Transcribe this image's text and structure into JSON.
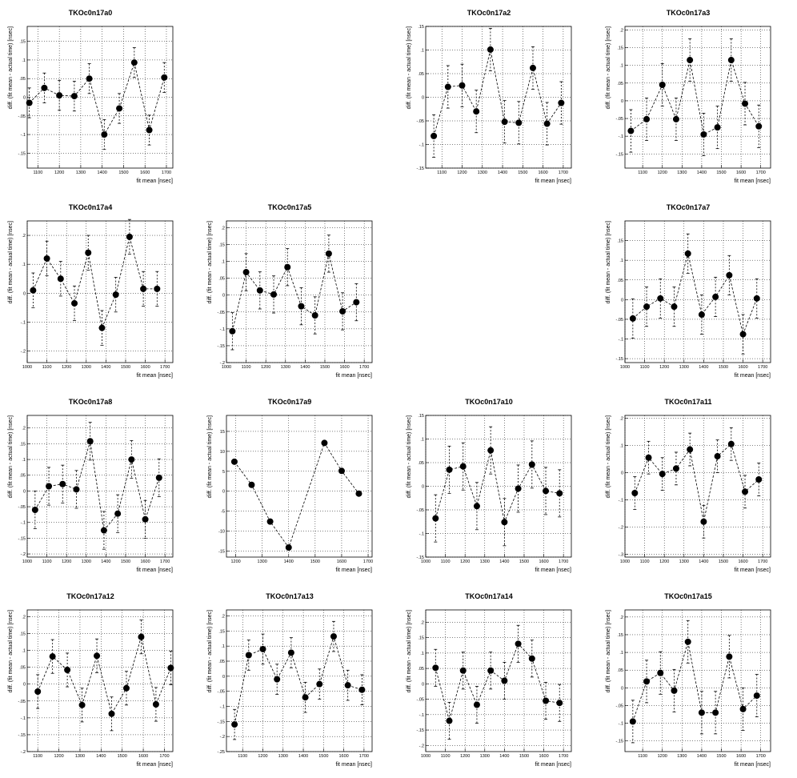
{
  "chart_data": [
    {
      "type": "scatter",
      "title": "TKOc0n17a0",
      "xlabel": "fit mean [nsec]",
      "ylabel": "diff. (fit mean - actual time) [nsec]",
      "xlim": [
        1050,
        1730
      ],
      "ylim": [
        -0.19,
        0.19
      ],
      "xticks": [
        1100,
        1200,
        1300,
        1400,
        1500,
        1600,
        1700
      ],
      "yticks": [
        -0.15,
        -0.1,
        -0.05,
        0,
        0.05,
        0.1,
        0.15
      ],
      "grid": true,
      "x": [
        1060,
        1130,
        1200,
        1270,
        1340,
        1410,
        1480,
        1550,
        1620,
        1690
      ],
      "y": [
        -0.015,
        0.025,
        0.005,
        0.003,
        0.05,
        -0.1,
        -0.03,
        0.093,
        -0.088,
        0.053
      ],
      "err": [
        0.04,
        0.04,
        0.04,
        0.04,
        0.04,
        0.04,
        0.04,
        0.04,
        0.04,
        0.04
      ]
    },
    {
      "type": "empty"
    },
    {
      "type": "scatter",
      "title": "TKOc0n17a2",
      "xlabel": "fit mean [nsec]",
      "ylabel": "diff. (fit mean - actual time) [nsec]",
      "xlim": [
        1020,
        1740
      ],
      "ylim": [
        -0.15,
        0.15
      ],
      "xticks": [
        1100,
        1200,
        1300,
        1400,
        1500,
        1600,
        1700
      ],
      "yticks": [
        -0.15,
        -0.1,
        -0.05,
        0,
        0.05,
        0.1,
        0.15
      ],
      "grid": true,
      "x": [
        1060,
        1130,
        1200,
        1270,
        1340,
        1410,
        1480,
        1550,
        1620,
        1690
      ],
      "y": [
        -0.082,
        0.022,
        0.025,
        -0.03,
        0.101,
        -0.052,
        -0.054,
        0.062,
        -0.056,
        -0.012
      ],
      "err": [
        0.045,
        0.045,
        0.045,
        0.045,
        0.045,
        0.045,
        0.045,
        0.045,
        0.045,
        0.045
      ]
    },
    {
      "type": "scatter",
      "title": "TKOc0n17a3",
      "xlabel": "fit mean [nsec]",
      "ylabel": "diff. (fit mean - actual time) [nsec]",
      "xlim": [
        1010,
        1750
      ],
      "ylim": [
        -0.19,
        0.21
      ],
      "xticks": [
        1100,
        1200,
        1300,
        1400,
        1500,
        1600,
        1700
      ],
      "yticks": [
        -0.15,
        -0.1,
        -0.05,
        0,
        0.05,
        0.1,
        0.15,
        0.2
      ],
      "grid": true,
      "x": [
        1040,
        1120,
        1200,
        1270,
        1340,
        1410,
        1480,
        1550,
        1620,
        1690
      ],
      "y": [
        -0.085,
        -0.052,
        0.045,
        -0.052,
        0.115,
        -0.095,
        -0.075,
        0.115,
        -0.008,
        -0.072
      ],
      "err": [
        0.06,
        0.06,
        0.06,
        0.06,
        0.06,
        0.06,
        0.06,
        0.06,
        0.06,
        0.06
      ]
    },
    {
      "type": "scatter",
      "title": "TKOc0n17a4",
      "xlabel": "fit mean [nsec]",
      "ylabel": "diff. (fit mean - actual time) [nsec]",
      "xlim": [
        1000,
        1740
      ],
      "ylim": [
        -0.24,
        0.25
      ],
      "xticks": [
        1000,
        1100,
        1200,
        1300,
        1400,
        1500,
        1600,
        1700
      ],
      "yticks": [
        -0.2,
        -0.1,
        0,
        0.1,
        0.2
      ],
      "grid": true,
      "x": [
        1030,
        1100,
        1170,
        1240,
        1310,
        1380,
        1450,
        1520,
        1590,
        1660
      ],
      "y": [
        0.01,
        0.12,
        0.05,
        -0.035,
        0.14,
        -0.12,
        -0.005,
        0.195,
        0.015,
        0.015
      ],
      "err": [
        0.06,
        0.06,
        0.06,
        0.06,
        0.06,
        0.06,
        0.06,
        0.06,
        0.06,
        0.06
      ]
    },
    {
      "type": "scatter",
      "title": "TKOc0n17a5",
      "xlabel": "fit mean [nsec]",
      "ylabel": "diff. (fit mean - actual time) [nsec]",
      "xlim": [
        1000,
        1740
      ],
      "ylim": [
        -0.2,
        0.22
      ],
      "xticks": [
        1000,
        1100,
        1200,
        1300,
        1400,
        1500,
        1600,
        1700
      ],
      "yticks": [
        -0.2,
        -0.15,
        -0.1,
        -0.05,
        0,
        0.05,
        0.1,
        0.15,
        0.2
      ],
      "grid": true,
      "x": [
        1030,
        1100,
        1170,
        1240,
        1310,
        1380,
        1450,
        1520,
        1590,
        1660
      ],
      "y": [
        -0.107,
        0.068,
        0.014,
        0.002,
        0.083,
        -0.033,
        -0.06,
        0.123,
        -0.048,
        -0.021
      ],
      "err": [
        0.055,
        0.055,
        0.055,
        0.055,
        0.055,
        0.055,
        0.055,
        0.055,
        0.055,
        0.055
      ]
    },
    {
      "type": "empty"
    },
    {
      "type": "scatter",
      "title": "TKOc0n17a7",
      "xlabel": "fit mean [nsec]",
      "ylabel": "diff. (fit mean - actual time) [nsec]",
      "xlim": [
        1000,
        1740
      ],
      "ylim": [
        -0.16,
        0.2
      ],
      "xticks": [
        1000,
        1100,
        1200,
        1300,
        1400,
        1500,
        1600,
        1700
      ],
      "yticks": [
        -0.15,
        -0.1,
        -0.05,
        0,
        0.05,
        0.1,
        0.15
      ],
      "grid": true,
      "x": [
        1040,
        1110,
        1180,
        1250,
        1320,
        1390,
        1460,
        1530,
        1600,
        1670
      ],
      "y": [
        -0.048,
        -0.018,
        0.003,
        -0.018,
        0.117,
        -0.038,
        0.007,
        0.062,
        -0.088,
        0.003
      ],
      "err": [
        0.05,
        0.05,
        0.05,
        0.05,
        0.05,
        0.05,
        0.05,
        0.05,
        0.05,
        0.05
      ]
    },
    {
      "type": "scatter",
      "title": "TKOc0n17a8",
      "xlabel": "fit mean [nsec]",
      "ylabel": "diff. (fit mean - actual time) [nsec]",
      "xlim": [
        1000,
        1740
      ],
      "ylim": [
        -0.21,
        0.24
      ],
      "xticks": [
        1000,
        1100,
        1200,
        1300,
        1400,
        1500,
        1600,
        1700
      ],
      "yticks": [
        -0.2,
        -0.15,
        -0.1,
        -0.05,
        0,
        0.05,
        0.1,
        0.15,
        0.2
      ],
      "grid": true,
      "x": [
        1040,
        1110,
        1180,
        1250,
        1320,
        1390,
        1460,
        1530,
        1600,
        1670
      ],
      "y": [
        -0.06,
        0.015,
        0.022,
        0.005,
        0.158,
        -0.125,
        -0.072,
        0.1,
        -0.09,
        0.042
      ],
      "err": [
        0.06,
        0.06,
        0.06,
        0.06,
        0.06,
        0.06,
        0.06,
        0.06,
        0.06,
        0.06
      ]
    },
    {
      "type": "line",
      "title": "TKOc0n17a9",
      "xlabel": "fit mean [nsec]",
      "ylabel": "diff. (fit mean - actual time) [nsec]",
      "xlim": [
        1165,
        1715
      ],
      "ylim": [
        -16.5,
        19
      ],
      "xticks": [
        1200,
        1300,
        1400,
        1500,
        1600,
        1700
      ],
      "yticks": [
        -15,
        -10,
        -5,
        0,
        5,
        10,
        15
      ],
      "grid": true,
      "x": [
        1195,
        1260,
        1330,
        1400,
        1535,
        1600,
        1665
      ],
      "y": [
        7.4,
        1.6,
        -7.6,
        -14.1,
        12.1,
        5.1,
        -0.6
      ]
    },
    {
      "type": "scatter",
      "title": "TKOc0n17a10",
      "xlabel": "fit mean [nsec]",
      "ylabel": "diff. (fit mean - actual time) [nsec]",
      "xlim": [
        1000,
        1740
      ],
      "ylim": [
        -0.15,
        0.15
      ],
      "xticks": [
        1000,
        1100,
        1200,
        1300,
        1400,
        1500,
        1600,
        1700
      ],
      "yticks": [
        -0.15,
        -0.1,
        -0.05,
        0,
        0.05,
        0.1,
        0.15
      ],
      "grid": true,
      "x": [
        1050,
        1120,
        1190,
        1260,
        1330,
        1400,
        1470,
        1540,
        1610,
        1680
      ],
      "y": [
        -0.068,
        0.035,
        0.042,
        -0.042,
        0.076,
        -0.076,
        -0.005,
        0.046,
        -0.01,
        -0.015
      ],
      "err": [
        0.05,
        0.05,
        0.05,
        0.05,
        0.05,
        0.05,
        0.05,
        0.05,
        0.05,
        0.05
      ]
    },
    {
      "type": "scatter",
      "title": "TKOc0n17a11",
      "xlabel": "fit mean [nsec]",
      "ylabel": "diff. (fit mean - actual time) [nsec]",
      "xlim": [
        1000,
        1740
      ],
      "ylim": [
        -0.31,
        0.21
      ],
      "xticks": [
        1000,
        1100,
        1200,
        1300,
        1400,
        1500,
        1600,
        1700
      ],
      "yticks": [
        -0.3,
        -0.2,
        -0.1,
        0,
        0.1,
        0.2
      ],
      "grid": true,
      "x": [
        1050,
        1120,
        1190,
        1260,
        1330,
        1400,
        1470,
        1540,
        1610,
        1680
      ],
      "y": [
        -0.075,
        0.055,
        -0.005,
        0.015,
        0.085,
        -0.18,
        0.06,
        0.105,
        -0.07,
        -0.025
      ],
      "err": [
        0.06,
        0.06,
        0.06,
        0.06,
        0.06,
        0.06,
        0.06,
        0.06,
        0.06,
        0.06
      ]
    },
    {
      "type": "scatter",
      "title": "TKOc0n17a12",
      "xlabel": "fit mean [nsec]",
      "ylabel": "diff. (fit mean - actual time) [nsec]",
      "xlim": [
        1050,
        1740
      ],
      "ylim": [
        -0.2,
        0.22
      ],
      "xticks": [
        1100,
        1200,
        1300,
        1400,
        1500,
        1600,
        1700
      ],
      "yticks": [
        -0.2,
        -0.15,
        -0.1,
        -0.05,
        0,
        0.05,
        0.1,
        0.15,
        0.2
      ],
      "grid": true,
      "x": [
        1100,
        1170,
        1240,
        1310,
        1380,
        1450,
        1520,
        1590,
        1660,
        1730
      ],
      "y": [
        -0.022,
        0.082,
        0.042,
        -0.062,
        0.084,
        -0.088,
        -0.012,
        0.14,
        -0.06,
        0.048
      ],
      "err": [
        0.05,
        0.05,
        0.05,
        0.05,
        0.05,
        0.05,
        0.05,
        0.05,
        0.05,
        0.05
      ]
    },
    {
      "type": "scatter",
      "title": "TKOc0n17a13",
      "xlabel": "fit mean [nsec]",
      "ylabel": "diff. (fit mean - actual time) [nsec]",
      "xlim": [
        1020,
        1740
      ],
      "ylim": [
        -0.25,
        0.22
      ],
      "xticks": [
        1100,
        1200,
        1300,
        1400,
        1500,
        1600,
        1700
      ],
      "yticks": [
        -0.25,
        -0.2,
        -0.15,
        -0.1,
        -0.05,
        0,
        0.05,
        0.1,
        0.15,
        0.2
      ],
      "grid": true,
      "x": [
        1060,
        1130,
        1200,
        1270,
        1340,
        1410,
        1480,
        1550,
        1620,
        1690
      ],
      "y": [
        -0.16,
        0.07,
        0.09,
        -0.01,
        0.078,
        -0.07,
        -0.026,
        0.132,
        -0.03,
        -0.045
      ],
      "err": [
        0.05,
        0.05,
        0.05,
        0.05,
        0.05,
        0.05,
        0.05,
        0.05,
        0.05,
        0.05
      ]
    },
    {
      "type": "scatter",
      "title": "TKOc0n17a14",
      "xlabel": "fit mean [nsec]",
      "ylabel": "diff. (fit mean - actual time) [nsec]",
      "xlim": [
        1000,
        1740
      ],
      "ylim": [
        -0.22,
        0.24
      ],
      "xticks": [
        1000,
        1100,
        1200,
        1300,
        1400,
        1500,
        1600,
        1700
      ],
      "yticks": [
        -0.2,
        -0.15,
        -0.1,
        -0.05,
        0,
        0.05,
        0.1,
        0.15,
        0.2
      ],
      "grid": true,
      "x": [
        1050,
        1120,
        1190,
        1260,
        1330,
        1400,
        1470,
        1540,
        1610,
        1680
      ],
      "y": [
        0.052,
        -0.12,
        0.043,
        -0.068,
        0.043,
        0.01,
        0.13,
        0.082,
        -0.055,
        -0.062
      ],
      "err": [
        0.06,
        0.06,
        0.06,
        0.06,
        0.06,
        0.06,
        0.06,
        0.06,
        0.06,
        0.06
      ]
    },
    {
      "type": "scatter",
      "title": "TKOc0n17a15",
      "xlabel": "fit mean [nsec]",
      "ylabel": "diff. (fit mean - actual time) [nsec]",
      "xlim": [
        1010,
        1750
      ],
      "ylim": [
        -0.18,
        0.22
      ],
      "xticks": [
        1100,
        1200,
        1300,
        1400,
        1500,
        1600,
        1700
      ],
      "yticks": [
        -0.15,
        -0.1,
        -0.05,
        0,
        0.05,
        0.1,
        0.15,
        0.2
      ],
      "grid": true,
      "x": [
        1050,
        1120,
        1190,
        1260,
        1330,
        1400,
        1470,
        1540,
        1610,
        1680
      ],
      "y": [
        -0.095,
        0.018,
        0.042,
        -0.008,
        0.13,
        -0.07,
        -0.07,
        0.088,
        -0.06,
        -0.022
      ],
      "err": [
        0.06,
        0.06,
        0.06,
        0.06,
        0.06,
        0.06,
        0.06,
        0.06,
        0.06,
        0.06
      ]
    }
  ]
}
